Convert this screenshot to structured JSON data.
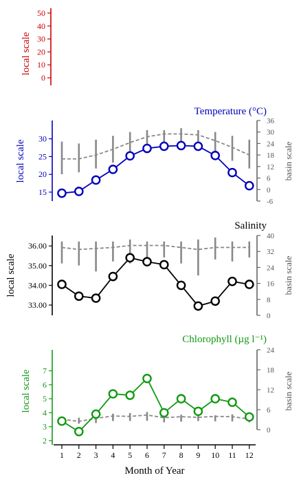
{
  "chart_data": [
    {
      "type": "line",
      "panel": "top",
      "title": "",
      "ylabel_left": "local scale",
      "y_left_ticks": [
        "0",
        "10",
        "20",
        "30",
        "40",
        "50"
      ],
      "ylim_left": [
        -5,
        55
      ],
      "color": "#cc0000",
      "series": []
    },
    {
      "type": "line",
      "panel": "temperature",
      "title": "Temperature (°C)",
      "ylabel_left": "local scale",
      "ylabel_right": "basin scale",
      "y_left_ticks": [
        "15",
        "20",
        "25",
        "30"
      ],
      "y_right_ticks": [
        "-6",
        "0",
        "6",
        "12",
        "18",
        "24",
        "30",
        "36"
      ],
      "ylim_left": [
        13.4,
        32.2
      ],
      "ylim_right": [
        -6,
        36
      ],
      "color": "#0000bb",
      "x": [
        1,
        2,
        3,
        4,
        5,
        6,
        7,
        8,
        9,
        10,
        11,
        12
      ],
      "local": [
        14.7,
        15.2,
        18.4,
        21.4,
        25.2,
        27.3,
        27.9,
        28.1,
        27.9,
        25.3,
        20.5,
        16.8
      ],
      "basin_mean": [
        16.0,
        16.0,
        18.0,
        21.0,
        24.5,
        27.5,
        29.0,
        29.0,
        28.5,
        25.5,
        22.0,
        18.0
      ],
      "basin_low": [
        8.0,
        9.0,
        11.0,
        14.0,
        18.0,
        21.0,
        24.0,
        24.0,
        23.0,
        19.0,
        15.0,
        11.0
      ],
      "basin_high": [
        25.0,
        24.0,
        26.0,
        28.0,
        30.0,
        31.0,
        31.0,
        32.0,
        31.0,
        30.0,
        28.0,
        26.0
      ]
    },
    {
      "type": "line",
      "panel": "salinity",
      "title": "Salinity",
      "ylabel_left": "local scale",
      "ylabel_right": "basin scale",
      "y_left_ticks": [
        "33.00",
        "34.00",
        "35.00",
        "36.00"
      ],
      "y_right_ticks": [
        "0",
        "8",
        "16",
        "24",
        "32",
        "40"
      ],
      "ylim_left": [
        32.5,
        36.5
      ],
      "ylim_right": [
        0,
        40
      ],
      "color": "#000000",
      "x": [
        1,
        2,
        3,
        4,
        5,
        6,
        7,
        8,
        9,
        10,
        11,
        12
      ],
      "local": [
        34.05,
        33.45,
        33.35,
        34.45,
        35.4,
        35.2,
        35.05,
        34.0,
        32.95,
        33.2,
        34.2,
        34.05
      ],
      "basin_mean": [
        34.0,
        33.0,
        33.5,
        34.0,
        35.0,
        35.0,
        35.0,
        34.0,
        33.0,
        34.0,
        34.0,
        34.0
      ],
      "basin_low": [
        26.0,
        25.0,
        22.0,
        27.0,
        26.0,
        27.0,
        29.0,
        26.0,
        20.0,
        28.0,
        27.0,
        29.0
      ],
      "basin_high": [
        37.0,
        37.0,
        37.0,
        37.0,
        38.0,
        37.0,
        37.0,
        37.0,
        38.0,
        39.0,
        37.0,
        37.0
      ]
    },
    {
      "type": "line",
      "panel": "chlorophyll",
      "title": "Chlorophyll (µg l⁻¹)",
      "ylabel_left": "local scale",
      "ylabel_right": "basin scale",
      "y_left_ticks": [
        "2",
        "3",
        "4",
        "5",
        "6",
        "7"
      ],
      "y_right_ticks": [
        "0",
        "6",
        "12",
        "18",
        "24"
      ],
      "ylim_left": [
        1.4,
        7.5
      ],
      "ylim_right": [
        0,
        24
      ],
      "color": "#119911",
      "xlabel": "Month of Year",
      "x": [
        1,
        2,
        3,
        4,
        5,
        6,
        7,
        8,
        9,
        10,
        11,
        12
      ],
      "local": [
        3.4,
        2.65,
        3.9,
        5.35,
        5.25,
        6.45,
        4.0,
        5.0,
        4.1,
        5.0,
        4.75,
        3.7
      ],
      "basin_mean": [
        3.1,
        2.5,
        3.4,
        4.1,
        4.0,
        4.4,
        3.6,
        3.9,
        3.7,
        4.0,
        3.9,
        3.2
      ],
      "basin_low": [
        1.5,
        1.8,
        2.0,
        2.6,
        2.6,
        2.7,
        2.2,
        2.4,
        2.6,
        2.5,
        2.5,
        2.2
      ],
      "basin_high": [
        3.8,
        3.6,
        4.2,
        4.8,
        5.0,
        5.3,
        4.2,
        4.5,
        4.2,
        4.3,
        4.6,
        3.8
      ]
    }
  ],
  "x_ticks": [
    "1",
    "2",
    "3",
    "4",
    "5",
    "6",
    "7",
    "8",
    "9",
    "10",
    "11",
    "12"
  ],
  "xlabel": "Month of Year",
  "basin_color": "#888888"
}
